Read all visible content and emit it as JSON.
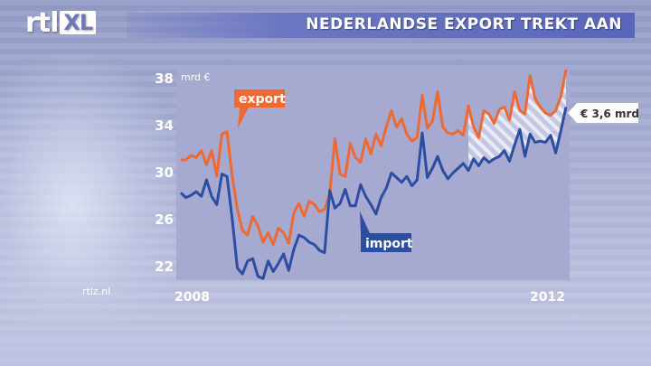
{
  "header": {
    "logo_main": "rtl",
    "logo_badge": "XL",
    "title": "NEDERLANDSE EXPORT TREKT AAN"
  },
  "footer": {
    "watermark": "rtlz.nl"
  },
  "colors": {
    "export": "#ee6a34",
    "import": "#2d4ea0",
    "plot_bg": "#a6a9d0"
  },
  "chart_data": {
    "type": "line",
    "title": "NEDERLANDSE EXPORT TREKT AAN",
    "ylabel": "mrd €",
    "ylim": [
      20,
      39
    ],
    "y_ticks": [
      22,
      26,
      30,
      34,
      38
    ],
    "x_ticks": [
      "2008",
      "2012"
    ],
    "grid": false,
    "annotation": "€ 3,6 mrd",
    "series": [
      {
        "name": "export",
        "values": [
          31,
          31,
          31.4,
          31.2,
          31.8,
          30.6,
          31.8,
          29.6,
          33.2,
          33.4,
          29.6,
          26.8,
          25,
          24.6,
          26.2,
          25.4,
          24,
          24.8,
          23.8,
          25.2,
          24.8,
          23.9,
          26.5,
          27.3,
          26.2,
          27.5,
          27.2,
          26.6,
          26.8,
          28.1,
          32.8,
          29.8,
          29.6,
          32.4,
          31.2,
          30.8,
          32.8,
          31.5,
          33.2,
          32.2,
          33.8,
          35.2,
          33.8,
          34.5,
          33.2,
          32.6,
          32.9,
          36.5,
          33.7,
          34.3,
          36.8,
          33.8,
          33.3,
          33.2,
          33.5,
          33.1,
          35.6,
          33.8,
          32.9,
          35.2,
          34.9,
          34.1,
          35.3,
          35.5,
          34.4,
          36.8,
          35.2,
          34.9,
          38.2,
          36.2,
          35.5,
          35,
          34.8,
          35.2,
          36.4,
          38.7
        ]
      },
      {
        "name": "import",
        "values": [
          28.2,
          27.8,
          28,
          28.3,
          27.9,
          29.3,
          27.9,
          27.2,
          29.8,
          29.6,
          26,
          21.8,
          21.3,
          22.4,
          22.6,
          21.1,
          20.9,
          22.4,
          21.5,
          22.2,
          23,
          21.6,
          23.4,
          24.6,
          24.4,
          24,
          23.8,
          23.3,
          23.1,
          28.4,
          26.9,
          27.3,
          28.5,
          27.1,
          27.1,
          28.9,
          27.9,
          27.2,
          26.4,
          27.8,
          28.6,
          29.9,
          29.5,
          29.1,
          29.6,
          28.8,
          29.3,
          33.3,
          29.5,
          30.3,
          31.3,
          30.1,
          29.4,
          29.9,
          30.3,
          30.7,
          30.1,
          31.1,
          30.5,
          31.2,
          30.8,
          31.1,
          31.3,
          31.8,
          30.9,
          32.3,
          33.6,
          31.3,
          33.2,
          32.5,
          32.6,
          32.5,
          33.1,
          31.6,
          33.5,
          35.5
        ]
      }
    ]
  }
}
